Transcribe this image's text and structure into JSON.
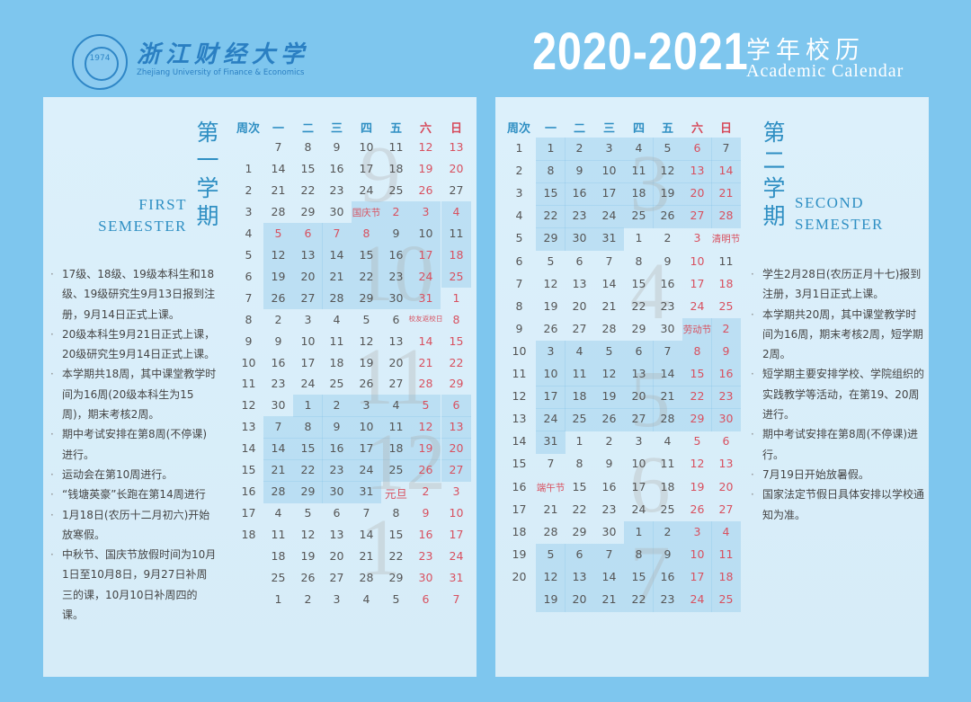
{
  "header": {
    "university_cn": "浙江财经大学",
    "university_en": "Zhejiang University of Finance & Economics",
    "logo_year": "1974",
    "year": "2020-2021",
    "title_cn": "学年校历",
    "title_en": "Academic Calendar"
  },
  "weekday_headers": [
    "周次",
    "一",
    "二",
    "三",
    "四",
    "五",
    "六",
    "日"
  ],
  "colors": {
    "background": "#7ec6ee",
    "panel": "#dcf0fb",
    "accent": "#2f8fc3",
    "holiday": "#d8505f"
  },
  "semesters": [
    {
      "title_cn": "第一学期",
      "title_en_1": "FIRST",
      "title_en_2": "SEMESTER",
      "month_numerals": [
        "9",
        "10",
        "11",
        "12",
        "1"
      ],
      "rows": [
        [
          "",
          [
            "7",
            "8",
            "9",
            "10",
            "11",
            "12",
            "13"
          ],
          [
            5,
            6
          ],
          []
        ],
        [
          "1",
          [
            "14",
            "15",
            "16",
            "17",
            "18",
            "19",
            "20"
          ],
          [
            5,
            6
          ],
          []
        ],
        [
          "2",
          [
            "21",
            "22",
            "23",
            "24",
            "25",
            "26",
            "27"
          ],
          [
            5
          ],
          []
        ],
        [
          "3",
          [
            "28",
            "29",
            "30",
            "国庆节",
            "2",
            "3",
            "4"
          ],
          [
            3,
            4,
            5,
            6
          ],
          [
            3,
            4,
            5,
            6
          ]
        ],
        [
          "4",
          [
            "5",
            "6",
            "7",
            "8",
            "9",
            "10",
            "11"
          ],
          [
            0,
            1,
            2,
            3
          ],
          [
            0,
            1,
            2,
            3,
            4,
            5,
            6
          ]
        ],
        [
          "5",
          [
            "12",
            "13",
            "14",
            "15",
            "16",
            "17",
            "18"
          ],
          [
            5,
            6
          ],
          [
            0,
            1,
            2,
            3,
            4,
            5,
            6
          ]
        ],
        [
          "6",
          [
            "19",
            "20",
            "21",
            "22",
            "23",
            "24",
            "25"
          ],
          [
            5,
            6
          ],
          [
            0,
            1,
            2,
            3,
            4,
            5,
            6
          ]
        ],
        [
          "7",
          [
            "26",
            "27",
            "28",
            "29",
            "30",
            "31",
            "1"
          ],
          [
            5,
            6
          ],
          [
            0,
            1,
            2,
            3,
            4,
            5
          ]
        ],
        [
          "8",
          [
            "2",
            "3",
            "4",
            "5",
            "6",
            "校友返校日",
            "8"
          ],
          [
            5,
            6
          ],
          []
        ],
        [
          "9",
          [
            "9",
            "10",
            "11",
            "12",
            "13",
            "14",
            "15"
          ],
          [
            5,
            6
          ],
          []
        ],
        [
          "10",
          [
            "16",
            "17",
            "18",
            "19",
            "20",
            "21",
            "22"
          ],
          [
            5,
            6
          ],
          []
        ],
        [
          "11",
          [
            "23",
            "24",
            "25",
            "26",
            "27",
            "28",
            "29"
          ],
          [
            5,
            6
          ],
          []
        ],
        [
          "12",
          [
            "30",
            "1",
            "2",
            "3",
            "4",
            "5",
            "6"
          ],
          [
            5,
            6
          ],
          [
            1,
            2,
            3,
            4,
            5,
            6
          ]
        ],
        [
          "13",
          [
            "7",
            "8",
            "9",
            "10",
            "11",
            "12",
            "13"
          ],
          [
            5,
            6
          ],
          [
            0,
            1,
            2,
            3,
            4,
            5,
            6
          ]
        ],
        [
          "14",
          [
            "14",
            "15",
            "16",
            "17",
            "18",
            "19",
            "20"
          ],
          [
            5,
            6
          ],
          [
            0,
            1,
            2,
            3,
            4,
            5,
            6
          ]
        ],
        [
          "15",
          [
            "21",
            "22",
            "23",
            "24",
            "25",
            "26",
            "27"
          ],
          [
            5,
            6
          ],
          [
            0,
            1,
            2,
            3,
            4,
            5,
            6
          ]
        ],
        [
          "16",
          [
            "28",
            "29",
            "30",
            "31",
            "元旦",
            "2",
            "3"
          ],
          [
            4,
            5,
            6
          ],
          [
            0,
            1,
            2,
            3
          ]
        ],
        [
          "17",
          [
            "4",
            "5",
            "6",
            "7",
            "8",
            "9",
            "10"
          ],
          [
            5,
            6
          ],
          []
        ],
        [
          "18",
          [
            "11",
            "12",
            "13",
            "14",
            "15",
            "16",
            "17"
          ],
          [
            5,
            6
          ],
          []
        ],
        [
          "",
          [
            "18",
            "19",
            "20",
            "21",
            "22",
            "23",
            "24"
          ],
          [
            5,
            6
          ],
          []
        ],
        [
          "",
          [
            "25",
            "26",
            "27",
            "28",
            "29",
            "30",
            "31"
          ],
          [
            5,
            6
          ],
          []
        ],
        [
          "",
          [
            "1",
            "2",
            "3",
            "4",
            "5",
            "6",
            "7"
          ],
          [
            5,
            6
          ],
          []
        ]
      ],
      "notes": [
        "17级、18级、19级本科生和18级、19级研究生9月13日报到注册，9月14日正式上课。",
        "20级本科生9月21日正式上课，20级研究生9月14日正式上课。",
        "本学期共18周，其中课堂教学时间为16周(20级本科生为15周)，期末考核2周。",
        "期中考试安排在第8周(不停课)进行。",
        "运动会在第10周进行。",
        "“钱塘英豪”长跑在第14周进行",
        "1月18日(农历十二月初六)开始放寒假。",
        "中秋节、国庆节放假时间为10月1日至10月8日，9月27日补周三的课，10月10日补周四的课。"
      ]
    },
    {
      "title_cn": "第二学期",
      "title_en_1": "SECOND",
      "title_en_2": "SEMESTER",
      "month_numerals": [
        "3",
        "4",
        "5",
        "6",
        "7"
      ],
      "rows": [
        [
          "1",
          [
            "1",
            "2",
            "3",
            "4",
            "5",
            "6",
            "7"
          ],
          [
            5
          ],
          [
            0,
            1,
            2,
            3,
            4,
            5,
            6
          ]
        ],
        [
          "2",
          [
            "8",
            "9",
            "10",
            "11",
            "12",
            "13",
            "14"
          ],
          [
            5,
            6
          ],
          [
            0,
            1,
            2,
            3,
            4,
            5,
            6
          ]
        ],
        [
          "3",
          [
            "15",
            "16",
            "17",
            "18",
            "19",
            "20",
            "21"
          ],
          [
            5,
            6
          ],
          [
            0,
            1,
            2,
            3,
            4,
            5,
            6
          ]
        ],
        [
          "4",
          [
            "22",
            "23",
            "24",
            "25",
            "26",
            "27",
            "28"
          ],
          [
            5,
            6
          ],
          [
            0,
            1,
            2,
            3,
            4,
            5,
            6
          ]
        ],
        [
          "5",
          [
            "29",
            "30",
            "31",
            "1",
            "2",
            "3",
            "清明节"
          ],
          [
            5,
            6
          ],
          [
            0,
            1,
            2
          ]
        ],
        [
          "6",
          [
            "5",
            "6",
            "7",
            "8",
            "9",
            "10",
            "11"
          ],
          [
            5
          ],
          []
        ],
        [
          "7",
          [
            "12",
            "13",
            "14",
            "15",
            "16",
            "17",
            "18"
          ],
          [
            5,
            6
          ],
          []
        ],
        [
          "8",
          [
            "19",
            "20",
            "21",
            "22",
            "23",
            "24",
            "25"
          ],
          [
            5,
            6
          ],
          []
        ],
        [
          "9",
          [
            "26",
            "27",
            "28",
            "29",
            "30",
            "劳动节",
            "2"
          ],
          [
            5,
            6
          ],
          [
            5,
            6
          ]
        ],
        [
          "10",
          [
            "3",
            "4",
            "5",
            "6",
            "7",
            "8",
            "9"
          ],
          [
            5,
            6
          ],
          [
            0,
            1,
            2,
            3,
            4,
            5,
            6
          ]
        ],
        [
          "11",
          [
            "10",
            "11",
            "12",
            "13",
            "14",
            "15",
            "16"
          ],
          [
            5,
            6
          ],
          [
            0,
            1,
            2,
            3,
            4,
            5,
            6
          ]
        ],
        [
          "12",
          [
            "17",
            "18",
            "19",
            "20",
            "21",
            "22",
            "23"
          ],
          [
            5,
            6
          ],
          [
            0,
            1,
            2,
            3,
            4,
            5,
            6
          ]
        ],
        [
          "13",
          [
            "24",
            "25",
            "26",
            "27",
            "28",
            "29",
            "30"
          ],
          [
            5,
            6
          ],
          [
            0,
            1,
            2,
            3,
            4,
            5,
            6
          ]
        ],
        [
          "14",
          [
            "31",
            "1",
            "2",
            "3",
            "4",
            "5",
            "6"
          ],
          [
            5,
            6
          ],
          [
            0
          ]
        ],
        [
          "15",
          [
            "7",
            "8",
            "9",
            "10",
            "11",
            "12",
            "13"
          ],
          [
            5,
            6
          ],
          []
        ],
        [
          "16",
          [
            "端午节",
            "15",
            "16",
            "17",
            "18",
            "19",
            "20"
          ],
          [
            0,
            5,
            6
          ],
          []
        ],
        [
          "17",
          [
            "21",
            "22",
            "23",
            "24",
            "25",
            "26",
            "27"
          ],
          [
            5,
            6
          ],
          []
        ],
        [
          "18",
          [
            "28",
            "29",
            "30",
            "1",
            "2",
            "3",
            "4"
          ],
          [
            5,
            6
          ],
          [
            3,
            4,
            5,
            6
          ]
        ],
        [
          "19",
          [
            "5",
            "6",
            "7",
            "8",
            "9",
            "10",
            "11"
          ],
          [
            5,
            6
          ],
          [
            0,
            1,
            2,
            3,
            4,
            5,
            6
          ]
        ],
        [
          "20",
          [
            "12",
            "13",
            "14",
            "15",
            "16",
            "17",
            "18"
          ],
          [
            5,
            6
          ],
          [
            0,
            1,
            2,
            3,
            4,
            5,
            6
          ]
        ],
        [
          "",
          [
            "19",
            "20",
            "21",
            "22",
            "23",
            "24",
            "25"
          ],
          [
            5,
            6
          ],
          [
            0,
            1,
            2,
            3,
            4,
            5,
            6
          ]
        ]
      ],
      "notes": [
        "学生2月28日(农历正月十七)报到注册，3月1日正式上课。",
        "本学期共20周，其中课堂教学时间为16周，期末考核2周，短学期2周。",
        "短学期主要安排学校、学院组织的实践教学等活动，在第19、20周进行。",
        "期中考试安排在第8周(不停课)进行。",
        "7月19日开始放暑假。",
        "国家法定节假日具体安排以学校通知为准。"
      ]
    }
  ]
}
